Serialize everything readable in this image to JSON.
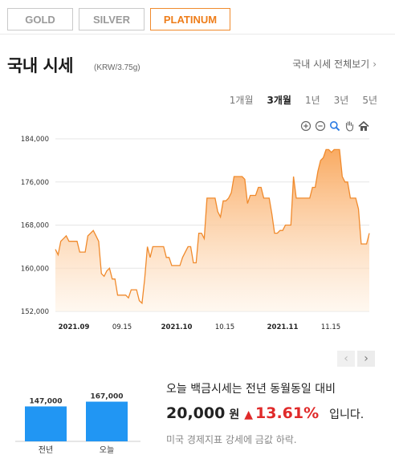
{
  "tabs": [
    {
      "label": "GOLD",
      "active": false
    },
    {
      "label": "SILVER",
      "active": false
    },
    {
      "label": "PLATINUM",
      "active": true
    }
  ],
  "header": {
    "title": "국내 시세",
    "unit": "(KRW/3.75g)",
    "view_all": "국내 시세 전체보기",
    "view_all_icon": "chevron-right-icon"
  },
  "periods": [
    {
      "label": "1개월",
      "selected": false
    },
    {
      "label": "3개월",
      "selected": true
    },
    {
      "label": "1년",
      "selected": false
    },
    {
      "label": "3년",
      "selected": false
    },
    {
      "label": "5년",
      "selected": false
    }
  ],
  "tools": [
    "zoom-in-icon",
    "zoom-out-icon",
    "magnifier-icon",
    "pan-hand-icon",
    "home-icon"
  ],
  "colors": {
    "accent": "#f08a2c",
    "area_top": "#f9a65a",
    "area_bottom": "#fff3e6",
    "bar": "#2196f3",
    "up": "#e02a2a"
  },
  "chart_data": {
    "type": "area",
    "y_ticks": [
      "184,000",
      "176,000",
      "168,000",
      "160,000",
      "152,000"
    ],
    "ylim": [
      152000,
      184000
    ],
    "x_ticks": [
      "2021.09",
      "09.15",
      "2021.10",
      "10.15",
      "2021.11",
      "11.15"
    ],
    "y": [
      163500,
      162500,
      165000,
      165500,
      166000,
      165000,
      165000,
      165000,
      165000,
      163000,
      163000,
      163000,
      166000,
      166500,
      167000,
      166000,
      165000,
      159000,
      158500,
      159500,
      160000,
      158000,
      158000,
      155000,
      155000,
      155000,
      155000,
      154500,
      156000,
      156000,
      156000,
      154000,
      153500,
      158000,
      164000,
      162000,
      164000,
      164000,
      164000,
      164000,
      164000,
      162000,
      162000,
      160500,
      160500,
      160500,
      160500,
      162000,
      163000,
      164000,
      164000,
      161000,
      161000,
      166500,
      166500,
      165500,
      173000,
      173000,
      173000,
      173000,
      170500,
      169500,
      172500,
      172500,
      173000,
      174000,
      177000,
      177000,
      177000,
      177000,
      176500,
      172000,
      173500,
      173500,
      173500,
      175000,
      175000,
      173000,
      173000,
      173000,
      170000,
      166500,
      166500,
      167000,
      167000,
      168000,
      168000,
      168000,
      177000,
      173000,
      173000,
      173000,
      173000,
      173000,
      173000,
      175000,
      175000,
      178000,
      180000,
      180500,
      182000,
      182000,
      181500,
      182000,
      182000,
      182000,
      177000,
      176000,
      176000,
      173000,
      173000,
      173000,
      171000,
      164500,
      164500,
      164500,
      166500
    ]
  },
  "mini_chart": {
    "bars": [
      {
        "label": "전년",
        "value": 147000,
        "value_text": "147,000"
      },
      {
        "label": "오늘",
        "value": 167000,
        "value_text": "167,000"
      }
    ]
  },
  "summary": {
    "line1": "오늘 백금시세는 전년 동월동일 대비",
    "amount": "20,000",
    "won": "원",
    "triangle": "▲",
    "percent": "13.61%",
    "tail": "입니다.",
    "note": "미국 경제지표 강세에 금값 하락."
  },
  "nav": {
    "prev": "‹",
    "next": "›"
  }
}
